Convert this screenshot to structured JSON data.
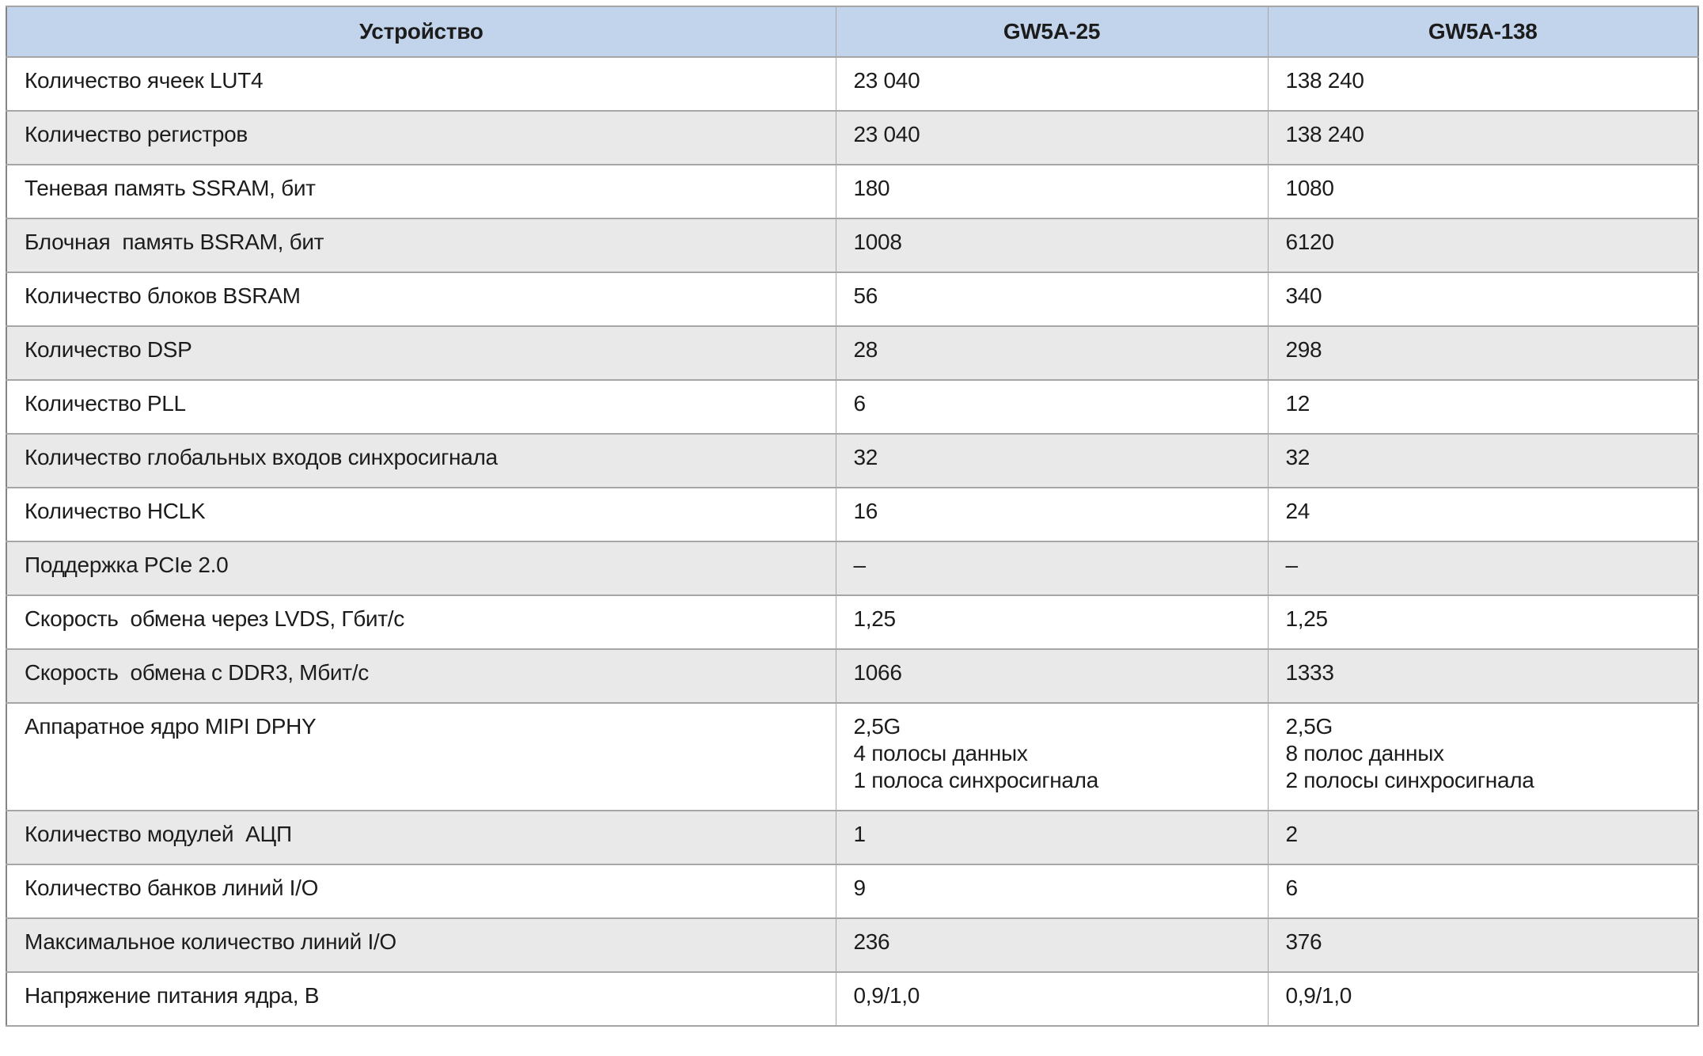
{
  "colors": {
    "header_bg": "#c2d4ec",
    "row_bg": "#ffffff",
    "stripe_bg": "#e9e9e9",
    "border": "#a6a6a6",
    "outer_border": "#848484",
    "text": "#1c1c1c"
  },
  "table": {
    "columns": [
      {
        "label": "Устройство"
      },
      {
        "label": "GW5A-25"
      },
      {
        "label": "GW5A-138"
      }
    ],
    "rows": [
      {
        "label": "Количество ячеек LUT4",
        "gw5a25": "23 040",
        "gw5a138": "138 240"
      },
      {
        "label": "Количество регистров",
        "gw5a25": "23 040",
        "gw5a138": "138 240"
      },
      {
        "label": "Теневая память SSRAM, бит",
        "gw5a25": "180",
        "gw5a138": "1080"
      },
      {
        "label": "Блочная  память BSRAM, бит",
        "gw5a25": "1008",
        "gw5a138": "6120"
      },
      {
        "label": "Количество блоков BSRAM",
        "gw5a25": "56",
        "gw5a138": "340"
      },
      {
        "label": "Количество DSP",
        "gw5a25": "28",
        "gw5a138": "298"
      },
      {
        "label": "Количество PLL",
        "gw5a25": "6",
        "gw5a138": "12"
      },
      {
        "label": "Количество глобальных входов синхросигнала",
        "gw5a25": "32",
        "gw5a138": "32"
      },
      {
        "label": "Количество HCLK",
        "gw5a25": "16",
        "gw5a138": "24"
      },
      {
        "label": "Поддержка PCIe 2.0",
        "gw5a25": "–",
        "gw5a138": "–"
      },
      {
        "label": "Скорость  обмена через LVDS, Гбит/с",
        "gw5a25": "1,25",
        "gw5a138": "1,25"
      },
      {
        "label": "Скорость  обмена с DDR3, Мбит/с",
        "gw5a25": "1066",
        "gw5a138": "1333"
      },
      {
        "label": "Аппаратное ядро MIPI DPHY",
        "gw5a25": "2,5G\n4 полосы данных\n1 полоса синхросигнала",
        "gw5a138": "2,5G\n8 полос данных\n2 полосы синхросигнала"
      },
      {
        "label": "Количество модулей  АЦП",
        "gw5a25": "1",
        "gw5a138": "2"
      },
      {
        "label": "Количество банков линий I/O",
        "gw5a25": "9",
        "gw5a138": "6"
      },
      {
        "label": "Максимальное количество линий I/O",
        "gw5a25": "236",
        "gw5a138": "376"
      },
      {
        "label": "Напряжение питания ядра, В",
        "gw5a25": "0,9/1,0",
        "gw5a138": "0,9/1,0"
      }
    ]
  }
}
